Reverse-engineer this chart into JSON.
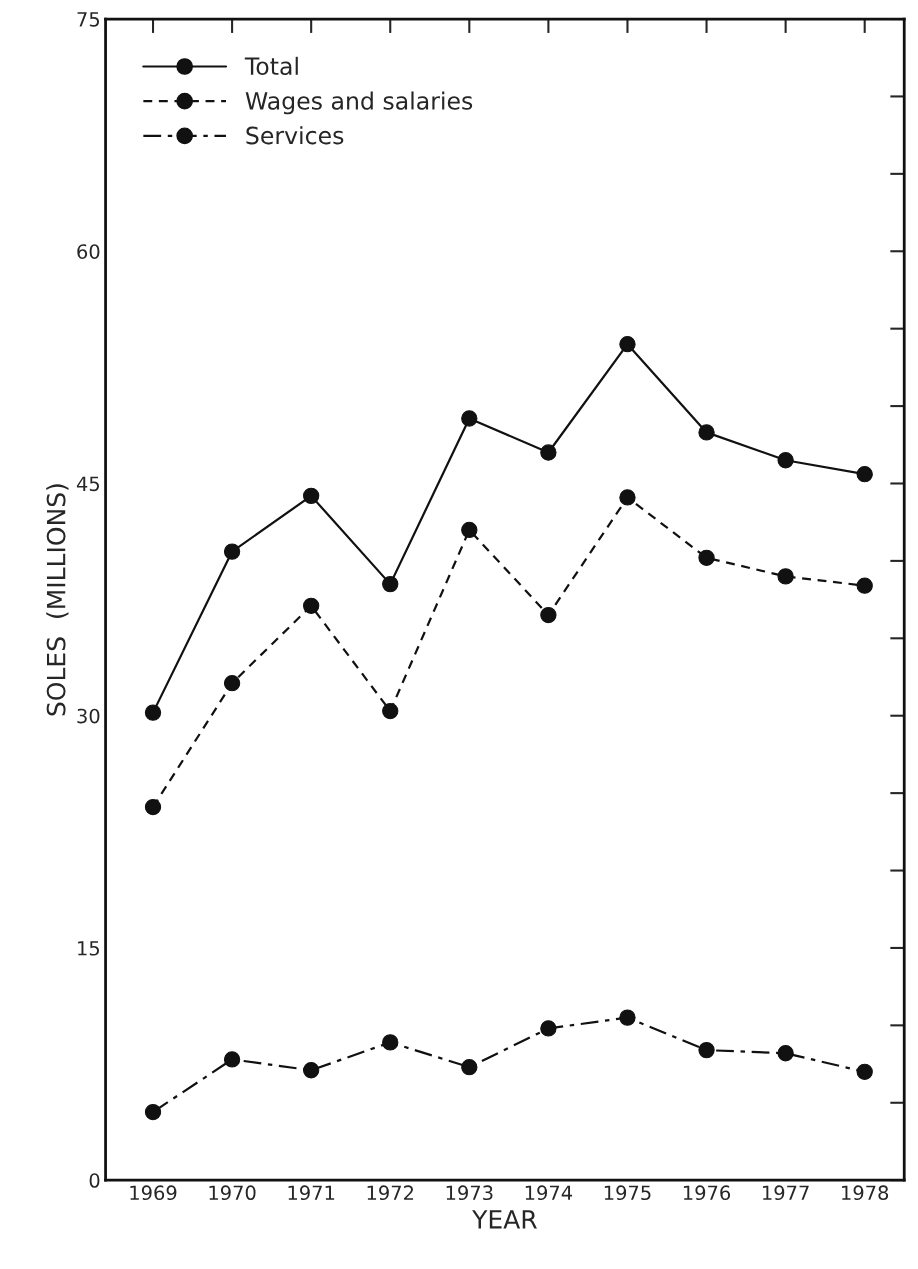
{
  "chart_data": {
    "type": "line",
    "xlabel": "YEAR",
    "ylabel": "SOLES  (MILLIONS)",
    "categories": [
      "1969",
      "1970",
      "1971",
      "1972",
      "1973",
      "1974",
      "1975",
      "1976",
      "1977",
      "1978"
    ],
    "series": [
      {
        "name": "Total",
        "color": "#111111",
        "line_style": "solid",
        "values": [
          30.2,
          40.6,
          44.2,
          38.5,
          49.2,
          47.0,
          54.0,
          48.3,
          46.5,
          45.6
        ]
      },
      {
        "name": "Wages and salaries",
        "color": "#111111",
        "line_style": "dashed",
        "values": [
          24.1,
          32.1,
          37.1,
          30.3,
          42.0,
          36.5,
          44.1,
          40.2,
          39.0,
          38.4
        ]
      },
      {
        "name": "Services",
        "color": "#111111",
        "line_style": "dashdot",
        "values": [
          4.4,
          7.8,
          7.1,
          8.9,
          7.3,
          9.8,
          10.5,
          8.4,
          8.2,
          7.0
        ]
      }
    ],
    "ylim": [
      0,
      75
    ],
    "yticks": [
      0,
      {
        "value": 5,
        "label": null
      },
      {
        "value": 10,
        "label": null
      },
      15,
      {
        "value": 20,
        "label": null
      },
      {
        "value": 25,
        "label": null
      },
      30,
      {
        "value": 35,
        "label": null
      },
      {
        "value": 40,
        "label": null
      },
      45,
      {
        "value": 50,
        "label": null
      },
      {
        "value": 55,
        "label": null
      },
      60,
      {
        "value": 65,
        "label": null
      },
      {
        "value": 70,
        "label": null
      },
      75
    ],
    "marker": "circle",
    "grid": false,
    "legend": "top left"
  }
}
